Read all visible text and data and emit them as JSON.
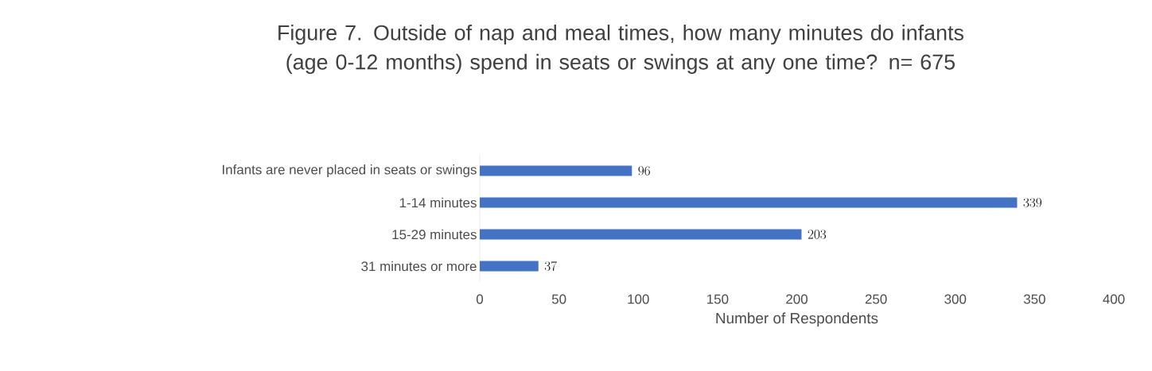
{
  "chart_data": {
    "type": "bar",
    "orientation": "horizontal",
    "title": "Figure 7. Outside of nap and meal times, how many minutes do infants (age 0-12 months) spend in seats or swings at any one time? n= 675",
    "xlabel": "Number of Respondents",
    "categories": [
      "Infants are never placed in seats or swings",
      "1-14 minutes",
      "15-29 minutes",
      "31 minutes or more"
    ],
    "values": [
      96,
      339,
      203,
      37
    ],
    "color": "#4472c4",
    "xlim": [
      0,
      400
    ],
    "xticks": [
      0,
      50,
      100,
      150,
      200,
      250,
      300,
      350,
      400
    ],
    "data_labels": true
  }
}
